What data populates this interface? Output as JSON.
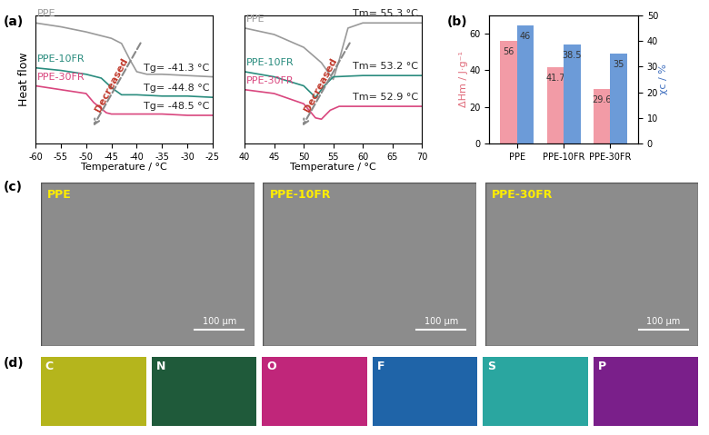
{
  "chart_data": [
    {
      "type": "line",
      "panel": "(a)",
      "xlabel": "Temperature / °C",
      "ylabel": "Heat flow",
      "xlim": [
        -60,
        -25
      ],
      "xticks": [
        -60,
        -55,
        -50,
        -45,
        -40,
        -35,
        -30,
        -25
      ],
      "ylim": [
        0,
        10
      ],
      "yticks": [],
      "tick_labels": "x",
      "series": [
        {
          "name": "PPE",
          "color": "#9a9a9a",
          "x": [
            -60,
            -55,
            -50,
            -45,
            -43,
            -41.3,
            -40,
            -38,
            -35,
            -30,
            -25
          ],
          "values": [
            9.4,
            9.1,
            8.7,
            8.2,
            7.8,
            6.5,
            5.6,
            5.4,
            5.4,
            5.3,
            5.2
          ]
        },
        {
          "name": "PPE-10FR",
          "color": "#2a8c7e",
          "x": [
            -60,
            -55,
            -50,
            -47,
            -44.8,
            -43,
            -40,
            -35,
            -30,
            -25
          ],
          "values": [
            5.9,
            5.7,
            5.4,
            5.1,
            4.3,
            3.8,
            3.8,
            3.7,
            3.7,
            3.6
          ]
        },
        {
          "name": "PPE-30FR",
          "color": "#d9467e",
          "x": [
            -60,
            -55,
            -50,
            -48.5,
            -46,
            -45,
            -40,
            -35,
            -30,
            -25
          ],
          "values": [
            4.5,
            4.2,
            3.9,
            3.2,
            2.4,
            2.3,
            2.3,
            2.3,
            2.2,
            2.2
          ]
        }
      ],
      "annotations": [
        {
          "text": "Tg= -41.3 °C",
          "series": "PPE"
        },
        {
          "text": "Tg= -44.8 °C",
          "series": "PPE-10FR"
        },
        {
          "text": "Tg= -48.5 °C",
          "series": "PPE-30FR"
        },
        {
          "text": "Decreased"
        }
      ]
    },
    {
      "type": "line",
      "xlim": [
        40,
        70
      ],
      "xticks": [
        40,
        45,
        50,
        55,
        60,
        65,
        70
      ],
      "xlabel": "Temperature / °C",
      "ylim": [
        0,
        10
      ],
      "yticks": [],
      "tick_labels": "x",
      "series": [
        {
          "name": "PPE",
          "color": "#9a9a9a",
          "x": [
            40,
            45,
            50,
            53,
            55,
            56,
            57.5,
            60,
            65,
            70
          ],
          "values": [
            9.0,
            8.5,
            7.5,
            6.3,
            5.0,
            6.5,
            9.0,
            9.4,
            9.4,
            9.4
          ]
        },
        {
          "name": "PPE-10FR",
          "color": "#2a8c7e",
          "x": [
            40,
            45,
            50,
            52,
            53.5,
            55,
            60,
            65,
            70
          ],
          "values": [
            5.6,
            5.2,
            4.5,
            3.6,
            4.5,
            5.2,
            5.3,
            5.3,
            5.3
          ]
        },
        {
          "name": "PPE-30FR",
          "color": "#d9467e",
          "x": [
            40,
            45,
            50,
            52,
            53,
            54.5,
            56,
            60,
            65,
            70
          ],
          "values": [
            4.2,
            3.9,
            3.1,
            2.0,
            1.9,
            2.6,
            2.9,
            2.9,
            2.9,
            2.9
          ]
        }
      ],
      "annotations": [
        {
          "text": "Tm= 55.3 °C",
          "series": "PPE"
        },
        {
          "text": "Tm= 53.2 °C",
          "series": "PPE-10FR"
        },
        {
          "text": "Tm= 52.9 °C",
          "series": "PPE-30FR"
        },
        {
          "text": "Decreased"
        }
      ]
    },
    {
      "type": "bar",
      "panel": "(b)",
      "categories": [
        "PPE",
        "PPE-10FR",
        "PPE-30FR"
      ],
      "ylabel": "ΔHm / J·g⁻¹",
      "y2label": "χc / %",
      "ylim": [
        0,
        70
      ],
      "yticks": [
        0,
        20,
        40,
        60
      ],
      "y2lim": [
        0,
        50
      ],
      "y2ticks": [
        0,
        10,
        20,
        30,
        40,
        50
      ],
      "data_labels": true,
      "series": [
        {
          "name": "ΔHm",
          "color": "#f29ba6",
          "values": [
            56,
            41.7,
            29.6
          ]
        },
        {
          "name": "χc",
          "color": "#6c9bd8",
          "values": [
            46,
            38.5,
            35
          ],
          "axis": "y2"
        }
      ]
    }
  ],
  "images": {
    "panel": "(c)",
    "items": [
      {
        "label": "PPE",
        "scale_bar": "100 μm"
      },
      {
        "label": "PPE-10FR",
        "scale_bar": "100 μm"
      },
      {
        "label": "PPE-30FR",
        "scale_bar": "100 μm"
      }
    ]
  },
  "element_maps": {
    "panel": "(d)",
    "items": [
      {
        "label": "C",
        "color": "#b5b51c"
      },
      {
        "label": "N",
        "color": "#1f5a3a"
      },
      {
        "label": "O",
        "color": "#c0267a"
      },
      {
        "label": "F",
        "color": "#1f64a8"
      },
      {
        "label": "S",
        "color": "#2aa6a0"
      },
      {
        "label": "P",
        "color": "#7a1f8a"
      }
    ]
  }
}
